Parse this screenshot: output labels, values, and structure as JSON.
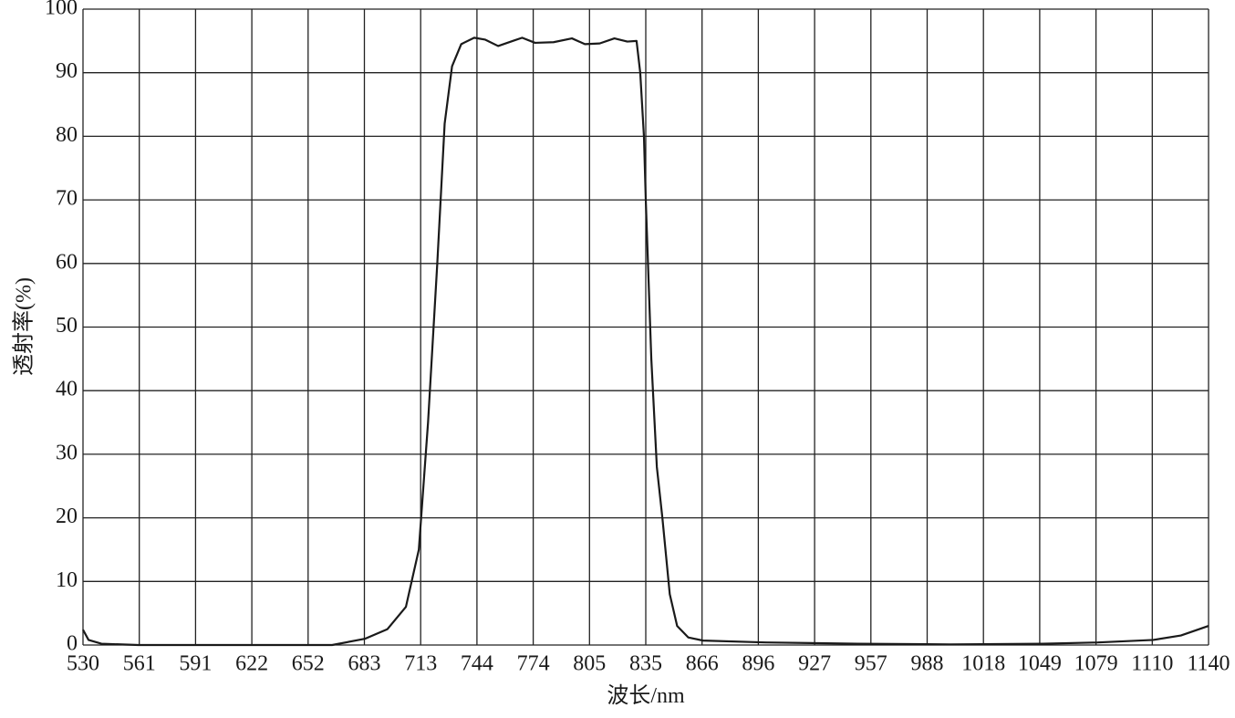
{
  "chart_data": {
    "type": "line",
    "xlabel": "波长/nm",
    "ylabel": "透射率(%)",
    "xlim": [
      530,
      1140
    ],
    "ylim": [
      0,
      100
    ],
    "xticks": [
      530,
      {
        "value": 560.5,
        "label": "561"
      },
      591,
      {
        "value": 621.5,
        "label": "622"
      },
      652,
      {
        "value": 682.5,
        "label": "683"
      },
      713,
      {
        "value": 743.5,
        "label": "744"
      },
      774,
      {
        "value": 804.5,
        "label": "805"
      },
      835,
      {
        "value": 865.5,
        "label": "866"
      },
      896,
      {
        "value": 926.5,
        "label": "927"
      },
      957,
      {
        "value": 987.5,
        "label": "988"
      },
      1018,
      {
        "value": 1048.5,
        "label": "1049"
      },
      1079,
      {
        "value": 1109.5,
        "label": "1110"
      },
      1140
    ],
    "yticks": [
      0,
      10,
      20,
      30,
      40,
      50,
      60,
      70,
      80,
      90,
      100
    ],
    "grid": true,
    "series": [
      {
        "color": "#1a1a1a",
        "x": [
          530,
          533,
          540,
          560,
          600,
          650,
          665,
          683,
          695,
          705,
          712,
          717,
          722,
          726,
          730,
          735,
          742,
          748,
          755,
          763,
          768,
          775,
          785,
          795,
          802,
          810,
          818,
          825,
          830,
          832,
          834,
          835,
          838,
          841,
          844,
          848,
          852,
          858,
          866,
          900,
          950,
          1000,
          1050,
          1080,
          1110,
          1125,
          1140
        ],
        "values": [
          2.4,
          0.8,
          0.2,
          0,
          0,
          0,
          0,
          1,
          2.5,
          6,
          15,
          35,
          60,
          82,
          91,
          94.5,
          95.5,
          95.2,
          94.2,
          95,
          95.5,
          94.7,
          94.8,
          95.4,
          94.5,
          94.6,
          95.4,
          94.9,
          95,
          90,
          80,
          70,
          45,
          28,
          20,
          8,
          3,
          1.2,
          0.7,
          0.4,
          0.2,
          0.1,
          0.2,
          0.4,
          0.8,
          1.5,
          3
        ]
      }
    ]
  }
}
